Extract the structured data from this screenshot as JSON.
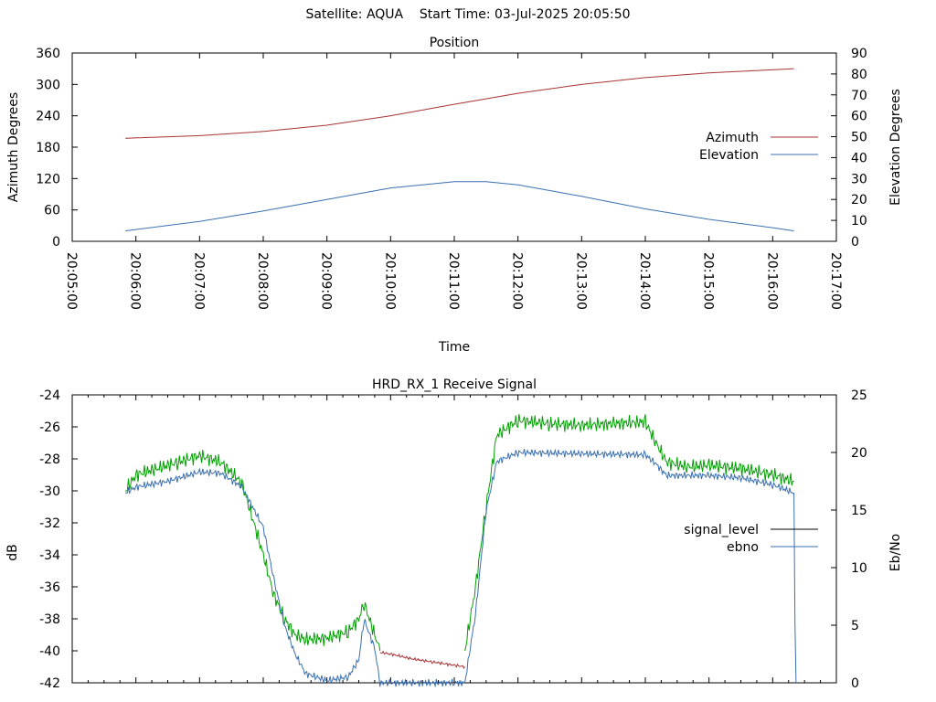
{
  "header": {
    "title": "Satellite: AQUA    Start Time: 03-Jul-2025 20:05:50"
  },
  "chart_data": [
    {
      "type": "line",
      "title": "Position",
      "xlabel": "Time",
      "ylabel": "Azimuth Degrees",
      "y2label": "Elevation Degrees",
      "xlim": [
        "20:05:00",
        "20:17:00"
      ],
      "x_ticks": [
        "20:05:00",
        "20:06:00",
        "20:07:00",
        "20:08:00",
        "20:09:00",
        "20:10:00",
        "20:11:00",
        "20:12:00",
        "20:13:00",
        "20:14:00",
        "20:15:00",
        "20:16:00",
        "20:17:00"
      ],
      "ylim": [
        0,
        360
      ],
      "y_ticks": [
        "0",
        "60",
        "120",
        "180",
        "240",
        "300",
        "360"
      ],
      "y2lim": [
        0,
        90
      ],
      "y2_ticks": [
        "0",
        "10",
        "20",
        "30",
        "40",
        "50",
        "60",
        "70",
        "80",
        "90"
      ],
      "legend_position": "right",
      "series": [
        {
          "name": "Azimuth",
          "axis": "left",
          "color": "#a83232",
          "x": [
            "20:05:50",
            "20:07:00",
            "20:08:00",
            "20:09:00",
            "20:10:00",
            "20:11:00",
            "20:12:00",
            "20:13:00",
            "20:14:00",
            "20:15:00",
            "20:16:00",
            "20:16:20"
          ],
          "values": [
            197,
            202,
            210,
            222,
            240,
            262,
            283,
            300,
            313,
            322,
            328,
            330
          ]
        },
        {
          "name": "Elevation",
          "axis": "right",
          "color": "#3a6fb0",
          "x": [
            "20:05:50",
            "20:07:00",
            "20:08:00",
            "20:09:00",
            "20:10:00",
            "20:11:00",
            "20:11:30",
            "20:12:00",
            "20:13:00",
            "20:14:00",
            "20:15:00",
            "20:16:00",
            "20:16:20"
          ],
          "values": [
            5,
            9.5,
            14.5,
            20,
            25.5,
            28.5,
            28.5,
            27,
            21.5,
            15.5,
            10.5,
            6.5,
            5
          ]
        }
      ]
    },
    {
      "type": "line",
      "title": "HRD_RX_1 Receive Signal",
      "ylabel": "dB",
      "y2label": "Eb/No",
      "ylim": [
        -42,
        -24
      ],
      "y_ticks": [
        "-24",
        "-26",
        "-28",
        "-30",
        "-32",
        "-34",
        "-36",
        "-38",
        "-40",
        "-42"
      ],
      "y2lim": [
        0,
        25
      ],
      "y2_ticks": [
        "0",
        "5",
        "10",
        "15",
        "20",
        "25"
      ],
      "legend_position": "right",
      "series": [
        {
          "name": "signal_level",
          "axis": "left",
          "color": "#000000",
          "segments": [
            {
              "color": "#00a000",
              "x": [
                "20:05:50",
                "20:06:00",
                "20:06:20",
                "20:06:40",
                "20:07:00",
                "20:07:20",
                "20:07:40",
                "20:08:00",
                "20:08:10",
                "20:08:20",
                "20:08:30",
                "20:08:40",
                "20:09:00",
                "20:09:20",
                "20:09:30",
                "20:09:35",
                "20:09:40",
                "20:09:50"
              ],
              "values": [
                -30,
                -29,
                -28.6,
                -28.2,
                -27.8,
                -28.2,
                -29.5,
                -34,
                -36.5,
                -38,
                -39,
                -39.3,
                -39.2,
                -38.8,
                -38,
                -37,
                -38,
                -40
              ]
            },
            {
              "color": "#a83232",
              "x": [
                "20:09:50",
                "20:10:00",
                "20:10:20",
                "20:10:40",
                "20:11:00",
                "20:11:10"
              ],
              "values": [
                -40.1,
                -40.2,
                -40.5,
                -40.7,
                -40.9,
                -41
              ]
            },
            {
              "color": "#00a000",
              "x": [
                "20:11:10",
                "20:11:20",
                "20:11:30",
                "20:11:40",
                "20:12:00",
                "20:12:30",
                "20:13:00",
                "20:13:30",
                "20:14:00",
                "20:14:10",
                "20:14:20",
                "20:14:40",
                "20:15:00",
                "20:15:30",
                "20:16:00",
                "20:16:20"
              ],
              "values": [
                -40,
                -36,
                -31,
                -26.5,
                -25.6,
                -25.8,
                -25.9,
                -25.8,
                -25.7,
                -27,
                -28.2,
                -28.5,
                -28.4,
                -28.6,
                -29,
                -29.4
              ]
            }
          ]
        },
        {
          "name": "ebno",
          "axis": "right",
          "color": "#3a6fb0",
          "x": [
            "20:05:50",
            "20:06:00",
            "20:06:30",
            "20:07:00",
            "20:07:20",
            "20:07:40",
            "20:08:00",
            "20:08:10",
            "20:08:20",
            "20:08:30",
            "20:08:40",
            "20:09:00",
            "20:09:20",
            "20:09:30",
            "20:09:35",
            "20:09:45",
            "20:09:50",
            "20:10:00",
            "20:11:00",
            "20:11:10",
            "20:11:20",
            "20:11:30",
            "20:11:40",
            "20:12:00",
            "20:13:00",
            "20:14:00",
            "20:14:10",
            "20:14:20",
            "20:15:00",
            "20:15:30",
            "20:16:00",
            "20:16:20",
            "20:16:21",
            "20:16:22"
          ],
          "values": [
            16.5,
            17,
            17.5,
            18.3,
            18.2,
            17,
            13.5,
            9,
            5,
            2.5,
            0.8,
            0.2,
            0.5,
            2,
            5.5,
            3,
            0,
            0,
            0,
            0,
            6,
            15,
            19.2,
            20,
            19.9,
            19.8,
            19,
            18,
            18,
            17.8,
            17.2,
            16.5,
            5,
            0
          ]
        }
      ]
    }
  ]
}
